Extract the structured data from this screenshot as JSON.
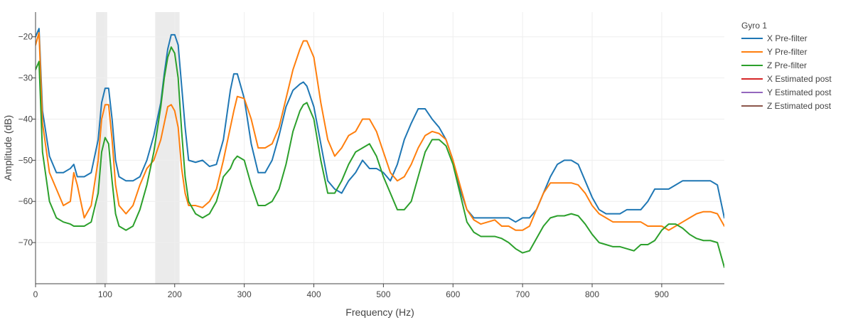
{
  "chart_data": {
    "type": "line",
    "title": "",
    "xlabel": "Frequency (Hz)",
    "ylabel": "Amplitude (dB)",
    "xlim": [
      0,
      990
    ],
    "ylim": [
      -80,
      -14
    ],
    "xticks": [
      0,
      100,
      200,
      300,
      400,
      500,
      600,
      700,
      800,
      900
    ],
    "yticks": [
      -70,
      -60,
      -50,
      -40,
      -30,
      -20
    ],
    "grid": true,
    "legend": {
      "title": "Gyro 1",
      "placement": "right"
    },
    "highlight_bands": [
      [
        87,
        103
      ],
      [
        172,
        207
      ]
    ],
    "series": [
      {
        "name": "X Pre-filter",
        "color": "#1f77b4",
        "x": [
          0,
          5,
          10,
          20,
          30,
          40,
          50,
          55,
          60,
          70,
          80,
          90,
          95,
          100,
          105,
          110,
          115,
          120,
          130,
          140,
          150,
          160,
          170,
          180,
          185,
          190,
          195,
          200,
          205,
          210,
          215,
          220,
          230,
          240,
          250,
          260,
          270,
          280,
          285,
          290,
          300,
          310,
          320,
          330,
          340,
          350,
          360,
          370,
          380,
          385,
          390,
          400,
          410,
          420,
          430,
          440,
          450,
          460,
          470,
          480,
          490,
          500,
          510,
          520,
          530,
          540,
          550,
          560,
          570,
          580,
          590,
          600,
          610,
          620,
          630,
          640,
          650,
          660,
          670,
          680,
          690,
          700,
          710,
          720,
          730,
          740,
          750,
          760,
          770,
          780,
          790,
          800,
          810,
          820,
          830,
          840,
          850,
          860,
          870,
          880,
          890,
          900,
          910,
          920,
          930,
          940,
          950,
          960,
          970,
          980,
          990
        ],
        "y": [
          -20,
          -18,
          -38,
          -49,
          -53,
          -53,
          -52,
          -51,
          -54,
          -54,
          -53,
          -45,
          -36,
          -32.5,
          -32.5,
          -40,
          -50,
          -54,
          -55,
          -55,
          -54,
          -50,
          -44,
          -36,
          -29,
          -23,
          -19.5,
          -19.5,
          -22,
          -32,
          -42,
          -50,
          -50.5,
          -50,
          -51.5,
          -51,
          -45,
          -33,
          -29,
          -29,
          -35,
          -46,
          -53,
          -53,
          -50,
          -44,
          -37,
          -33,
          -31.5,
          -31,
          -32,
          -37,
          -46,
          -55,
          -57,
          -58,
          -55,
          -53,
          -50,
          -52,
          -52,
          -53,
          -55,
          -51,
          -45,
          -41,
          -37.5,
          -37.5,
          -40,
          -42,
          -45,
          -50,
          -57,
          -62,
          -64,
          -64,
          -64,
          -64,
          -64,
          -64,
          -65,
          -64,
          -64,
          -62,
          -58,
          -54,
          -51,
          -50,
          -50,
          -51,
          -55,
          -59,
          -62,
          -63,
          -63,
          -63,
          -62,
          -62,
          -62,
          -60,
          -57,
          -57,
          -57,
          -56,
          -55,
          -55,
          -55,
          -55,
          -55,
          -56,
          -64
        ]
      },
      {
        "name": "Y Pre-filter",
        "color": "#ff7f0e",
        "x": [
          0,
          5,
          10,
          20,
          30,
          40,
          50,
          55,
          60,
          70,
          80,
          90,
          95,
          100,
          105,
          110,
          115,
          120,
          130,
          140,
          150,
          160,
          170,
          180,
          185,
          190,
          195,
          200,
          205,
          210,
          215,
          220,
          230,
          240,
          250,
          260,
          270,
          280,
          285,
          290,
          300,
          310,
          320,
          330,
          340,
          350,
          360,
          370,
          380,
          385,
          390,
          400,
          410,
          420,
          430,
          440,
          450,
          460,
          470,
          480,
          490,
          500,
          510,
          520,
          530,
          540,
          550,
          560,
          570,
          580,
          590,
          600,
          610,
          620,
          630,
          640,
          650,
          660,
          670,
          680,
          690,
          700,
          710,
          720,
          730,
          740,
          750,
          760,
          770,
          780,
          790,
          800,
          810,
          820,
          830,
          840,
          850,
          860,
          870,
          880,
          890,
          900,
          910,
          920,
          930,
          940,
          950,
          960,
          970,
          980,
          990
        ],
        "y": [
          -22,
          -19,
          -41,
          -53,
          -57,
          -61,
          -60,
          -53,
          -56,
          -64,
          -61,
          -50,
          -40,
          -36.5,
          -36.5,
          -45,
          -56,
          -61,
          -63,
          -61,
          -56,
          -52,
          -50,
          -45,
          -41,
          -37,
          -36.5,
          -38,
          -42,
          -52,
          -58,
          -61,
          -61,
          -61.5,
          -60,
          -57,
          -50,
          -42,
          -38,
          -34.5,
          -35,
          -40,
          -47,
          -47,
          -46,
          -42,
          -35,
          -28,
          -23,
          -21,
          -21,
          -25,
          -36,
          -45,
          -49,
          -47,
          -44,
          -43,
          -40,
          -40,
          -43,
          -48,
          -53,
          -55,
          -54,
          -51,
          -47,
          -44,
          -43,
          -43.5,
          -45,
          -50,
          -56,
          -62,
          -64.5,
          -65.5,
          -65,
          -64.5,
          -66,
          -66,
          -67,
          -67,
          -66,
          -62,
          -58,
          -55.5,
          -55.5,
          -55.5,
          -55.5,
          -56,
          -58,
          -61,
          -63,
          -64,
          -65,
          -65,
          -65,
          -65,
          -65,
          -66,
          -66,
          -66,
          -67,
          -66,
          -65,
          -64,
          -63,
          -62.5,
          -62.5,
          -63,
          -66
        ]
      },
      {
        "name": "Z Pre-filter",
        "color": "#2ca02c",
        "x": [
          0,
          5,
          10,
          20,
          30,
          40,
          50,
          55,
          60,
          70,
          80,
          90,
          95,
          100,
          105,
          110,
          115,
          120,
          130,
          140,
          150,
          160,
          170,
          180,
          185,
          190,
          195,
          200,
          205,
          210,
          215,
          220,
          230,
          240,
          250,
          260,
          270,
          280,
          285,
          290,
          300,
          310,
          320,
          330,
          340,
          350,
          360,
          370,
          380,
          385,
          390,
          400,
          410,
          420,
          430,
          440,
          450,
          460,
          470,
          480,
          490,
          500,
          510,
          520,
          530,
          540,
          550,
          560,
          570,
          580,
          590,
          600,
          610,
          620,
          630,
          640,
          650,
          660,
          670,
          680,
          690,
          700,
          710,
          720,
          730,
          740,
          750,
          760,
          770,
          780,
          790,
          800,
          810,
          820,
          830,
          840,
          850,
          860,
          870,
          880,
          890,
          900,
          910,
          920,
          930,
          940,
          950,
          960,
          970,
          980,
          990
        ],
        "y": [
          -28,
          -26,
          -48,
          -60,
          -64,
          -65,
          -65.5,
          -66,
          -66,
          -66,
          -65,
          -58,
          -48,
          -44.5,
          -46,
          -55,
          -63,
          -66,
          -67,
          -66,
          -62,
          -56,
          -48,
          -37,
          -30,
          -25,
          -22.5,
          -24,
          -30,
          -43,
          -54,
          -60,
          -63,
          -64,
          -63,
          -60,
          -54,
          -52,
          -50,
          -49,
          -50,
          -56,
          -61,
          -61,
          -60,
          -57,
          -51,
          -43,
          -38,
          -36.5,
          -36,
          -40,
          -50,
          -58,
          -58,
          -55,
          -51,
          -48,
          -47,
          -46,
          -49,
          -54,
          -58,
          -62,
          -62,
          -60,
          -54,
          -48,
          -45,
          -45,
          -46.5,
          -51,
          -58,
          -65,
          -67.5,
          -68.5,
          -68.5,
          -68.5,
          -69,
          -70,
          -71.5,
          -72.5,
          -72,
          -69,
          -66,
          -64,
          -63.5,
          -63.5,
          -63,
          -63.5,
          -65.5,
          -68,
          -70,
          -70.5,
          -71,
          -71,
          -71.5,
          -72,
          -70.5,
          -70.5,
          -69.5,
          -67,
          -65.5,
          -65.5,
          -66.5,
          -68,
          -69,
          -69.5,
          -69.5,
          -70,
          -76
        ]
      },
      {
        "name": "X Estimated post",
        "color": "#d62728",
        "x": [],
        "y": []
      },
      {
        "name": "Y Estimated post",
        "color": "#9467bd",
        "x": [],
        "y": []
      },
      {
        "name": "Z Estimated post",
        "color": "#8c564b",
        "x": [],
        "y": []
      }
    ]
  }
}
